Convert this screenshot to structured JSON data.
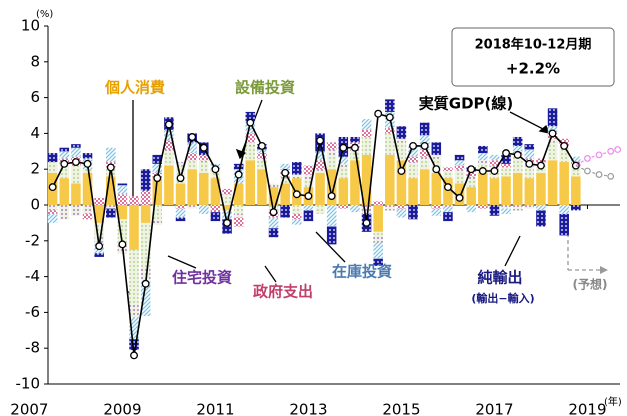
{
  "chart_data": {
    "type": "bar",
    "unit_y": "(%)",
    "unit_x": "(年)",
    "xlim": [
      2007.4,
      2019.7
    ],
    "xticks": [
      2007,
      2009,
      2011,
      2013,
      2015,
      2017,
      2019
    ],
    "ylim": [
      -10,
      10
    ],
    "yticks": [
      -10,
      -8,
      -6,
      -4,
      -2,
      0,
      2,
      4,
      6,
      8,
      10
    ],
    "x": [
      2007.5,
      2007.75,
      2008,
      2008.25,
      2008.5,
      2008.75,
      2009,
      2009.25,
      2009.5,
      2009.75,
      2010,
      2010.25,
      2010.5,
      2010.75,
      2011,
      2011.25,
      2011.5,
      2011.75,
      2012,
      2012.25,
      2012.5,
      2012.75,
      2013,
      2013.25,
      2013.5,
      2013.75,
      2014,
      2014.25,
      2014.5,
      2014.75,
      2015,
      2015.25,
      2015.5,
      2015.75,
      2016,
      2016.25,
      2016.5,
      2016.75,
      2017,
      2017.25,
      2017.5,
      2017.75,
      2018,
      2018.25,
      2018.5,
      2018.75
    ],
    "series": [
      {
        "name": "個人消費",
        "color": "#f7c948",
        "pattern": "solid",
        "label_color": "#e8a000",
        "values": [
          1.8,
          1.5,
          1.2,
          1.8,
          -1.0,
          1.6,
          -0.8,
          -2.5,
          -1.0,
          1.5,
          2.2,
          1.2,
          2.0,
          1.8,
          1.5,
          -0.3,
          1.2,
          2.5,
          2.0,
          1.0,
          1.2,
          1.5,
          1.0,
          1.8,
          2.0,
          1.5,
          2.5,
          2.8,
          -1.5,
          2.8,
          2.5,
          1.5,
          2.0,
          1.8,
          1.5,
          1.2,
          1.0,
          1.8,
          1.5,
          1.6,
          1.8,
          1.5,
          1.8,
          2.5,
          2.4,
          1.6
        ]
      },
      {
        "name": "設備投資",
        "color": "#a9c97a",
        "pattern": "dots",
        "label_color": "#7a9a3a",
        "values": [
          0.6,
          0.8,
          1.0,
          0.2,
          -0.8,
          0.5,
          -1.5,
          -3.0,
          -2.5,
          -0.8,
          0.8,
          1.0,
          0.5,
          0.6,
          0.3,
          0.5,
          -0.5,
          0.8,
          0.5,
          -0.3,
          0.3,
          -0.5,
          0.4,
          -0.5,
          0.8,
          0.5,
          0.5,
          1.0,
          -0.2,
          1.2,
          1.0,
          0.8,
          0.5,
          0.8,
          0.4,
          0.6,
          0.3,
          0.5,
          0.6,
          0.5,
          1.0,
          0.8,
          0.5,
          1.0,
          0.8,
          0.5
        ]
      },
      {
        "name": "住宅投資",
        "color": "#9b59b6",
        "pattern": "dots",
        "label_color": "#7030a0",
        "values": [
          -0.3,
          -0.8,
          -0.6,
          -0.5,
          -0.3,
          -0.2,
          -0.4,
          -0.8,
          -0.7,
          -0.3,
          0.1,
          0.2,
          -0.2,
          0.1,
          0.2,
          0.1,
          -0.2,
          0.2,
          0.1,
          0.2,
          0.1,
          0.2,
          0.3,
          0.2,
          0.3,
          0.3,
          0.2,
          -0.5,
          -0.4,
          -0.3,
          0.2,
          0.1,
          0.2,
          0.2,
          -0.1,
          0.2,
          0.3,
          0.2,
          0.1,
          -0.2,
          -0.3,
          -0.2,
          0.1,
          0.2,
          0.1,
          0.1
        ]
      },
      {
        "name": "政府支出",
        "color": "#e0709a",
        "pattern": "checker",
        "label_color": "#c0406a",
        "values": [
          -0.2,
          0.3,
          0.5,
          -0.3,
          0.4,
          0.3,
          0.6,
          0.5,
          0.8,
          0.3,
          0.5,
          -0.2,
          0.4,
          0.3,
          -0.4,
          0.3,
          -0.5,
          0.5,
          0.3,
          -0.4,
          0.4,
          -0.3,
          0.5,
          0.5,
          0.4,
          -0.2,
          0.3,
          0.4,
          0.2,
          0.3,
          -0.2,
          0.3,
          0.4,
          -0.2,
          0.2,
          0.2,
          0.3,
          -0.2,
          0.3,
          0.2,
          0.2,
          0.3,
          0.2,
          0.3,
          0.4,
          0.2
        ]
      },
      {
        "name": "在庫投資",
        "color": "#7cc4e4",
        "pattern": "hatch",
        "label_color": "#4a7ab0",
        "values": [
          -0.5,
          0.4,
          0.5,
          0.6,
          -0.6,
          0.8,
          0.5,
          -1.2,
          -2.0,
          0.5,
          0.6,
          -0.5,
          0.6,
          -0.5,
          0.3,
          -0.5,
          0.8,
          0.7,
          0.2,
          -0.6,
          0.3,
          -0.3,
          -0.3,
          0.5,
          -1.2,
          0.4,
          -0.4,
          0.6,
          -0.9,
          0.9,
          -0.5,
          0.6,
          0.8,
          -0.4,
          -0.3,
          0.3,
          -0.4,
          0.4,
          0.3,
          -0.3,
          0.3,
          0.5,
          -0.3,
          0.4,
          -0.5,
          0.3
        ]
      },
      {
        "name": "純輸出",
        "color": "#1a1a9c",
        "pattern": "dots",
        "label_color": "#1a1a80",
        "values": [
          0.5,
          0.2,
          0.2,
          0.3,
          -0.2,
          -0.5,
          0.1,
          -0.6,
          1.2,
          0.5,
          0.7,
          -0.2,
          0.5,
          0.7,
          -0.5,
          -0.8,
          0.3,
          0.5,
          0.3,
          -0.5,
          -0.7,
          0.7,
          -0.6,
          1.0,
          -1.0,
          1.1,
          0.3,
          -1.0,
          -0.4,
          0.7,
          0.7,
          -0.8,
          0.7,
          0.7,
          -0.5,
          0.3,
          0.2,
          0.4,
          -0.6,
          0.5,
          0.5,
          0.3,
          -0.9,
          1.0,
          -1.2,
          -0.3
        ]
      },
      {
        "name": "実質GDP(線)",
        "type": "line",
        "color": "#000000",
        "values": [
          1.0,
          2.3,
          2.4,
          2.3,
          -2.3,
          2.1,
          -2.2,
          -8.4,
          -4.4,
          1.5,
          4.5,
          1.5,
          3.8,
          3.2,
          2.0,
          -1.0,
          1.7,
          4.6,
          3.3,
          -0.4,
          1.8,
          0.6,
          0.5,
          3.6,
          0.5,
          3.2,
          3.2,
          -1.0,
          5.1,
          4.9,
          1.9,
          3.3,
          3.3,
          2.0,
          1.0,
          0.4,
          2.0,
          1.9,
          1.9,
          2.9,
          2.8,
          2.3,
          2.2,
          4.0,
          3.3,
          2.2
        ]
      }
    ],
    "forecast": [
      {
        "color": "#999999",
        "x": [
          2019,
          2019.25,
          2019.5
        ],
        "values": [
          1.9,
          1.7,
          1.6
        ]
      },
      {
        "color": "#ee88ee",
        "x": [
          2019,
          2019.25,
          2019.5,
          2019.65
        ],
        "values": [
          2.6,
          2.8,
          3.0,
          3.1
        ]
      }
    ],
    "annotations": [
      "2018年10-12月期",
      "+2.2%",
      "(輸出−輸入)",
      "(予想)"
    ]
  }
}
